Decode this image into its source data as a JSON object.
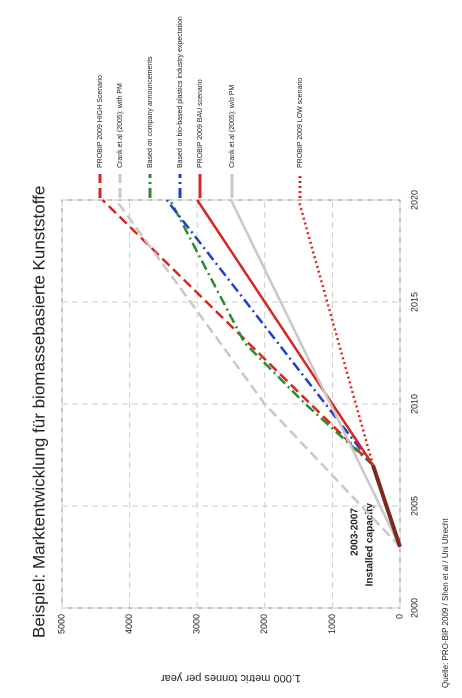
{
  "chart_data": {
    "type": "line",
    "title": "Beispiel: Marktentwicklung für biomassebasierte Kunststoffe",
    "y_label": "1.000 metric tonnes per year",
    "source": "Quelle: PRO-BIP 2009 / Shen et al / Uni Utrecht",
    "annotation": [
      "2003-2007",
      "Installed capacity"
    ],
    "xlim": [
      2000,
      2020
    ],
    "xticks": [
      2000,
      2005,
      2010,
      2015,
      2020
    ],
    "ylim": [
      0,
      5000
    ],
    "yticks": [
      0,
      1000,
      2000,
      3000,
      4000,
      5000
    ],
    "grid": true,
    "installed": {
      "color": "#7a2a1e",
      "x": [
        2003,
        2007
      ],
      "values": [
        0,
        400
      ]
    },
    "series": [
      {
        "name": "PROBIP 2009 HIGH Scenario",
        "color": "#d9261c",
        "style": "dashed",
        "x": [
          2007,
          2020
        ],
        "values": [
          400,
          4400
        ]
      },
      {
        "name": "Crank et al (2005): with PM",
        "color": "#c8c8c8",
        "style": "dashed",
        "x": [
          2003,
          2010,
          2020
        ],
        "values": [
          0,
          2000,
          4200
        ]
      },
      {
        "name": "Based on company announcements",
        "color": "#2e8b2e",
        "style": "dashdot",
        "x": [
          2007,
          2010,
          2013,
          2020
        ],
        "values": [
          400,
          1400,
          2300,
          3400
        ]
      },
      {
        "name": "Based on bio-based plastics industry expectation",
        "color": "#1f3fd0",
        "style": "dashdot",
        "x": [
          2007,
          2020
        ],
        "values": [
          400,
          3450
        ]
      },
      {
        "name": "PROBIP 2009 BAU scenario",
        "color": "#d9261c",
        "style": "solid",
        "x": [
          2007,
          2020
        ],
        "values": [
          400,
          3000
        ]
      },
      {
        "name": "Crank et al (2005): w/o PM",
        "color": "#c8c8c8",
        "style": "solid",
        "x": [
          2003,
          2020
        ],
        "values": [
          0,
          2500
        ]
      },
      {
        "name": "PROBIP 2009 LOW scenario",
        "color": "#d9261c",
        "style": "dotted",
        "x": [
          2007,
          2020
        ],
        "values": [
          400,
          1500
        ]
      }
    ]
  }
}
